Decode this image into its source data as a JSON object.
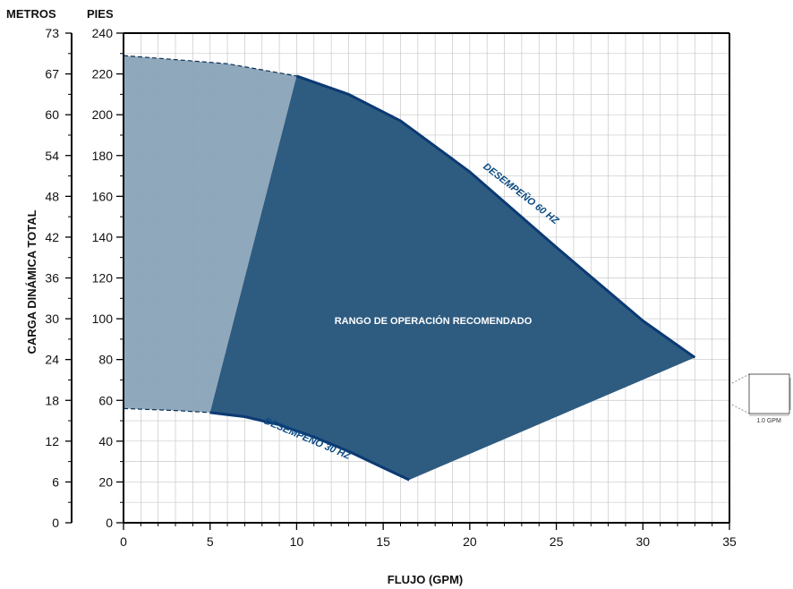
{
  "chart_data": {
    "type": "area",
    "xlabel": "FLUJO (GPM)",
    "ylabel": "CARGA DINÁMICA TOTAL",
    "y_left_unit": "METROS",
    "y_right_unit": "PIES",
    "xlim": [
      0,
      35
    ],
    "ylim": [
      0,
      240
    ],
    "x_ticks": [
      0,
      5,
      10,
      15,
      20,
      25,
      30,
      35
    ],
    "y_ticks": [
      0,
      20,
      40,
      60,
      80,
      100,
      120,
      140,
      160,
      180,
      200,
      220,
      240
    ],
    "y_meter_ticks": [
      "0",
      "6",
      "12",
      "18",
      "24",
      "30",
      "36",
      "42",
      "48",
      "54",
      "60",
      "67",
      "73"
    ],
    "grid": true,
    "series": [
      {
        "name": "DESEMPEÑO 60 HZ",
        "x": [
          0,
          3,
          6,
          10,
          13,
          16,
          20,
          25,
          30,
          33
        ],
        "y": [
          229,
          227,
          225,
          219,
          210,
          197,
          172,
          135,
          99,
          81
        ]
      },
      {
        "name": "DESEMPEÑO 30 HZ",
        "x": [
          0,
          3,
          5,
          7,
          9,
          11,
          13,
          15,
          16.5
        ],
        "y": [
          56,
          55,
          54,
          52,
          48,
          42,
          35,
          27,
          21
        ]
      }
    ],
    "boundary_lines": [
      {
        "from": [
          5,
          54
        ],
        "to": [
          10,
          219
        ]
      },
      {
        "from": [
          16.5,
          21
        ],
        "to": [
          33,
          81
        ]
      }
    ],
    "regions": [
      {
        "name": "RANGO DE OPERACIÓN RECOMENDADO",
        "color": "#2e5b80"
      },
      {
        "name": "",
        "color": "#8aa3b8"
      }
    ],
    "region_label": "RANGO DE OPERACIÓN RECOMENDADO",
    "scale_note": "1.0 GPM"
  }
}
